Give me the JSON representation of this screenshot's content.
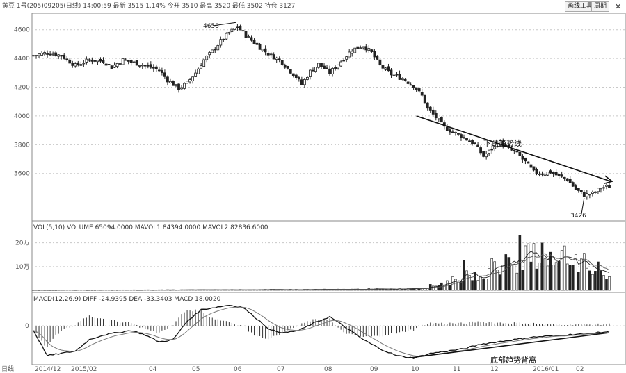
{
  "header": {
    "info_text": "黄豆 1号(205)09205(日线) 14:00:59 最新 3515 1.14% 今开 3510 最高 3520 最低 3502 持仓 3127",
    "button_a": "画线工具",
    "button_b": "周期",
    "close_label": "✕"
  },
  "colors": {
    "candle": "#222222",
    "trendline": "#111111",
    "ma_line": "#555555",
    "grid": "#c8c8c8",
    "background": "#ffffff"
  },
  "chart_data": [
    {
      "type": "candlestick",
      "title": "",
      "ylim": [
        3280,
        4700
      ],
      "yticks": [
        4600,
        4400,
        4200,
        4000,
        3800,
        3600
      ],
      "ytick_labels": [
        "4600",
        "4400",
        "4200",
        "4000",
        "3800",
        "3600"
      ],
      "close_path": [
        [
          0,
          4420
        ],
        [
          5,
          4440
        ],
        [
          10,
          4420
        ],
        [
          15,
          4350
        ],
        [
          20,
          4390
        ],
        [
          25,
          4380
        ],
        [
          28,
          4340
        ],
        [
          32,
          4390
        ],
        [
          36,
          4370
        ],
        [
          40,
          4350
        ],
        [
          45,
          4320
        ],
        [
          48,
          4250
        ],
        [
          52,
          4190
        ],
        [
          55,
          4230
        ],
        [
          58,
          4300
        ],
        [
          61,
          4390
        ],
        [
          64,
          4450
        ],
        [
          67,
          4520
        ],
        [
          70,
          4580
        ],
        [
          73,
          4620
        ],
        [
          76,
          4560
        ],
        [
          79,
          4510
        ],
        [
          82,
          4460
        ],
        [
          85,
          4420
        ],
        [
          88,
          4390
        ],
        [
          91,
          4330
        ],
        [
          94,
          4270
        ],
        [
          96,
          4220
        ],
        [
          99,
          4310
        ],
        [
          102,
          4360
        ],
        [
          106,
          4300
        ],
        [
          110,
          4380
        ],
        [
          114,
          4460
        ],
        [
          118,
          4490
        ],
        [
          121,
          4440
        ],
        [
          124,
          4350
        ],
        [
          128,
          4290
        ],
        [
          132,
          4260
        ],
        [
          136,
          4210
        ],
        [
          139,
          4140
        ],
        [
          141,
          4050
        ],
        [
          144,
          3990
        ],
        [
          147,
          3920
        ],
        [
          150,
          3890
        ],
        [
          154,
          3850
        ],
        [
          158,
          3800
        ],
        [
          161,
          3720
        ],
        [
          164,
          3770
        ],
        [
          167,
          3820
        ],
        [
          170,
          3770
        ],
        [
          173,
          3740
        ],
        [
          176,
          3680
        ],
        [
          179,
          3610
        ],
        [
          182,
          3600
        ],
        [
          185,
          3610
        ],
        [
          188,
          3580
        ],
        [
          191,
          3560
        ],
        [
          194,
          3490
        ],
        [
          197,
          3450
        ],
        [
          200,
          3460
        ],
        [
          203,
          3500
        ],
        [
          206,
          3510
        ]
      ],
      "annotations": [
        {
          "text": "4658",
          "kind": "high-marker"
        },
        {
          "text": "下跌趋势线",
          "kind": "trendline-label"
        },
        {
          "text": "3426",
          "kind": "low-marker"
        }
      ]
    },
    {
      "type": "bar",
      "title": "VOL(5,10) VOLUME 65094.0000 MAVOL1 84394.0000 MAVOL2 82836.6000",
      "ytick_labels": [
        "20万",
        "10万"
      ],
      "yticks": [
        200000,
        100000
      ],
      "ylim": [
        0,
        240000
      ],
      "volume_path": [
        [
          0,
          1000
        ],
        [
          60,
          2000
        ],
        [
          110,
          4000
        ],
        [
          130,
          6000
        ],
        [
          140,
          12000
        ],
        [
          150,
          40000
        ],
        [
          160,
          80000
        ],
        [
          170,
          120000
        ],
        [
          180,
          150000
        ],
        [
          190,
          130000
        ],
        [
          200,
          100000
        ],
        [
          206,
          65094
        ]
      ]
    },
    {
      "type": "line",
      "title": "MACD(12,26,9) DIFF -24.9395 DEA -33.3403 MACD 18.0020",
      "ytick_labels": [
        "0"
      ],
      "ylim": [
        -160,
        100
      ],
      "diff_path": [
        [
          0,
          -20
        ],
        [
          5,
          -130
        ],
        [
          10,
          -120
        ],
        [
          15,
          -110
        ],
        [
          20,
          -60
        ],
        [
          25,
          -40
        ],
        [
          30,
          -30
        ],
        [
          35,
          -20
        ],
        [
          40,
          -40
        ],
        [
          45,
          -70
        ],
        [
          50,
          -60
        ],
        [
          55,
          20
        ],
        [
          60,
          70
        ],
        [
          65,
          80
        ],
        [
          70,
          90
        ],
        [
          75,
          80
        ],
        [
          80,
          30
        ],
        [
          85,
          -20
        ],
        [
          90,
          -30
        ],
        [
          95,
          -20
        ],
        [
          100,
          10
        ],
        [
          106,
          40
        ],
        [
          112,
          -10
        ],
        [
          118,
          -60
        ],
        [
          124,
          -100
        ],
        [
          130,
          -130
        ],
        [
          136,
          -140
        ],
        [
          142,
          -120
        ],
        [
          148,
          -110
        ],
        [
          154,
          -100
        ],
        [
          160,
          -80
        ],
        [
          166,
          -70
        ],
        [
          172,
          -60
        ],
        [
          178,
          -50
        ],
        [
          184,
          -45
        ],
        [
          190,
          -40
        ],
        [
          196,
          -35
        ],
        [
          202,
          -30
        ],
        [
          206,
          -25
        ]
      ],
      "x_tick_labels": [
        "日线",
        "2014/12",
        "2015/02",
        "04",
        "05",
        "06",
        "07",
        "08",
        "09",
        "10",
        "11",
        "12",
        "2016/01",
        "02"
      ],
      "annotations": [
        {
          "text": "底部趋势背离",
          "kind": "divergence-label"
        }
      ]
    }
  ]
}
